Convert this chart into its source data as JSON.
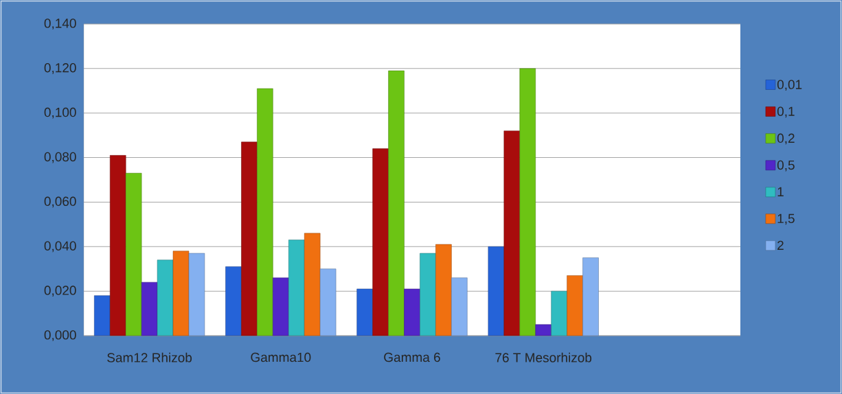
{
  "chart_data": {
    "type": "bar",
    "categories": [
      "Sam12 Rhizob",
      "Gamma10",
      "Gamma 6",
      "76 T Mesorhizob",
      null
    ],
    "series": [
      {
        "name": "0,01",
        "color": "#2563d8",
        "values": [
          0.018,
          0.031,
          0.021,
          0.04,
          null
        ]
      },
      {
        "name": "0,1",
        "color": "#a80c0c",
        "values": [
          0.081,
          0.087,
          0.084,
          0.092,
          null
        ]
      },
      {
        "name": "0,2",
        "color": "#6cc414",
        "values": [
          0.073,
          0.111,
          0.119,
          0.12,
          null
        ]
      },
      {
        "name": "0,5",
        "color": "#5226c8",
        "values": [
          0.024,
          0.026,
          0.021,
          0.005,
          null
        ]
      },
      {
        "name": "1",
        "color": "#30bcc0",
        "values": [
          0.034,
          0.043,
          0.037,
          0.02,
          null
        ]
      },
      {
        "name": "1,5",
        "color": "#f07010",
        "values": [
          0.038,
          0.046,
          0.041,
          0.027,
          null
        ]
      },
      {
        "name": "2",
        "color": "#84b0f0",
        "values": [
          0.037,
          0.03,
          0.026,
          0.035,
          null
        ]
      }
    ],
    "ylim": [
      0,
      0.14
    ],
    "yticks": [
      {
        "value": 0,
        "label": "0,000"
      },
      {
        "value": 0.02,
        "label": "0,020"
      },
      {
        "value": 0.04,
        "label": "0,040"
      },
      {
        "value": 0.06,
        "label": "0,060"
      },
      {
        "value": 0.08,
        "label": "0,080"
      },
      {
        "value": 0.1,
        "label": "0,100"
      },
      {
        "value": 0.12,
        "label": "0,120"
      },
      {
        "value": 0.14,
        "label": "0,140"
      }
    ],
    "grid": "y",
    "legend": "right"
  }
}
